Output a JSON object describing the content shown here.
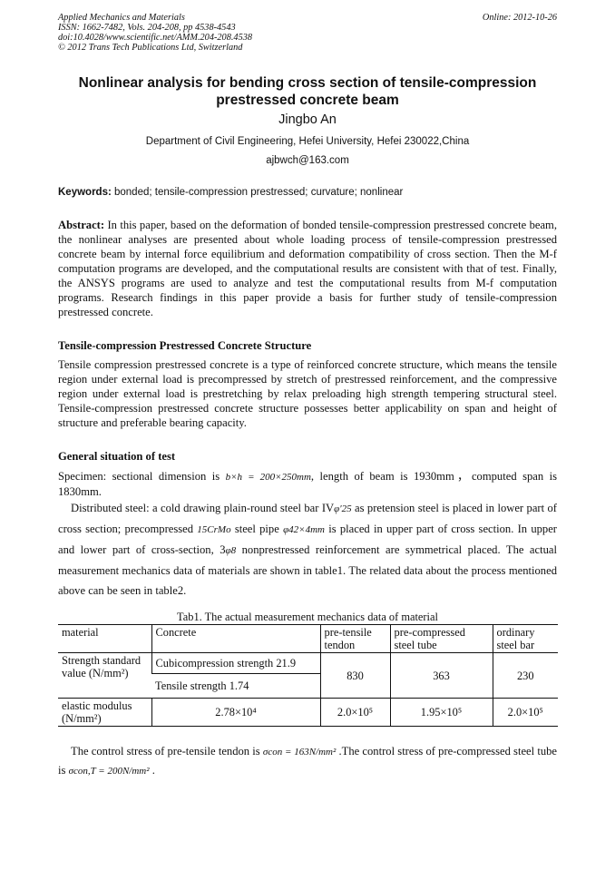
{
  "header": {
    "lines": [
      "Applied Mechanics and Materials",
      "ISSN: 1662-7482, Vols. 204-208, pp 4538-4543",
      "doi:10.4028/www.scientific.net/AMM.204-208.4538",
      "© 2012 Trans Tech Publications Ltd, Switzerland"
    ],
    "online": "Online: 2012-10-26"
  },
  "title": "Nonlinear analysis for bending cross section of tensile-compression prestressed concrete beam",
  "author": "Jingbo An",
  "affiliation": "Department of Civil Engineering, Hefei University, Hefei 230022,China",
  "email": "ajbwch@163.com",
  "keywords": {
    "label": "Keywords:",
    "text": " bonded; tensile-compression prestressed; curvature; nonlinear"
  },
  "abstract": {
    "label": "Abstract:",
    "text": " In this paper, based on the deformation of bonded tensile-compression prestressed concrete beam, the nonlinear analyses are presented about whole loading process of tensile-compression prestressed concrete beam by internal force equilibrium and deformation compatibility of cross section. Then the M-f computation programs are developed, and the computational results are consistent with that of test. Finally, the ANSYS programs are used to analyze and test the computational results from M-f computation programs. Research findings in this paper provide a basis for further study of tensile-compression prestressed concrete."
  },
  "section1": {
    "heading": "Tensile-compression Prestressed Concrete Structure",
    "text": "Tensile compression prestressed concrete is a type of reinforced concrete structure, which means the tensile region under external load is precompressed by stretch   of prestressed reinforcement, and the compressive region under external load is prestretching by relax preloading high strength tempering structural steel. Tensile-compression prestressed concrete structure possesses better applicability on span and height of structure and preferable bearing capacity."
  },
  "section2": {
    "heading": "General situation of test",
    "p1": [
      "Specimen: sectional dimension is ",
      "b×h = 200×250mm",
      ", length of beam is 1930mm，computed span is 1830mm."
    ],
    "p2": [
      "Distributed steel: a cold drawing plain-round steel bar IV",
      "φ′25",
      " as pretension steel is placed in lower part of cross section; precompressed ",
      "15CrMo",
      " steel pipe ",
      "φ42×4mm",
      " is placed in upper part of cross section. In upper and lower part of cross-section, 3",
      "φ8",
      " nonprestressed reinforcement are symmetrical placed. The actual measurement mechanics data of materials are shown in table1. The related data about the process mentioned above can be seen in table2."
    ],
    "p3": [
      "The control stress of pre-tensile tendon is ",
      "σcon = 163N/mm²",
      " .The control stress of pre-compressed steel tube is ",
      "σcon,T = 200N/mm²",
      " ."
    ]
  },
  "table1": {
    "caption": "Tab1. The actual measurement mechanics data of material",
    "headers": [
      "material",
      "Concrete",
      "pre-tensile tendon",
      "pre-compressed steel tube",
      "ordinary steel bar"
    ],
    "strength_label": "Strength standard value (N/mm²)",
    "concrete_cubic": "Cubicompression strength 21.9",
    "concrete_tensile": "Tensile strength 1.74",
    "strength": [
      "830",
      "363",
      "230"
    ],
    "modulus_label": "elastic modulus (N/mm²)",
    "modulus": [
      "2.78×10⁴",
      "2.0×10⁵",
      "1.95×10⁵",
      "2.0×10⁵"
    ]
  }
}
